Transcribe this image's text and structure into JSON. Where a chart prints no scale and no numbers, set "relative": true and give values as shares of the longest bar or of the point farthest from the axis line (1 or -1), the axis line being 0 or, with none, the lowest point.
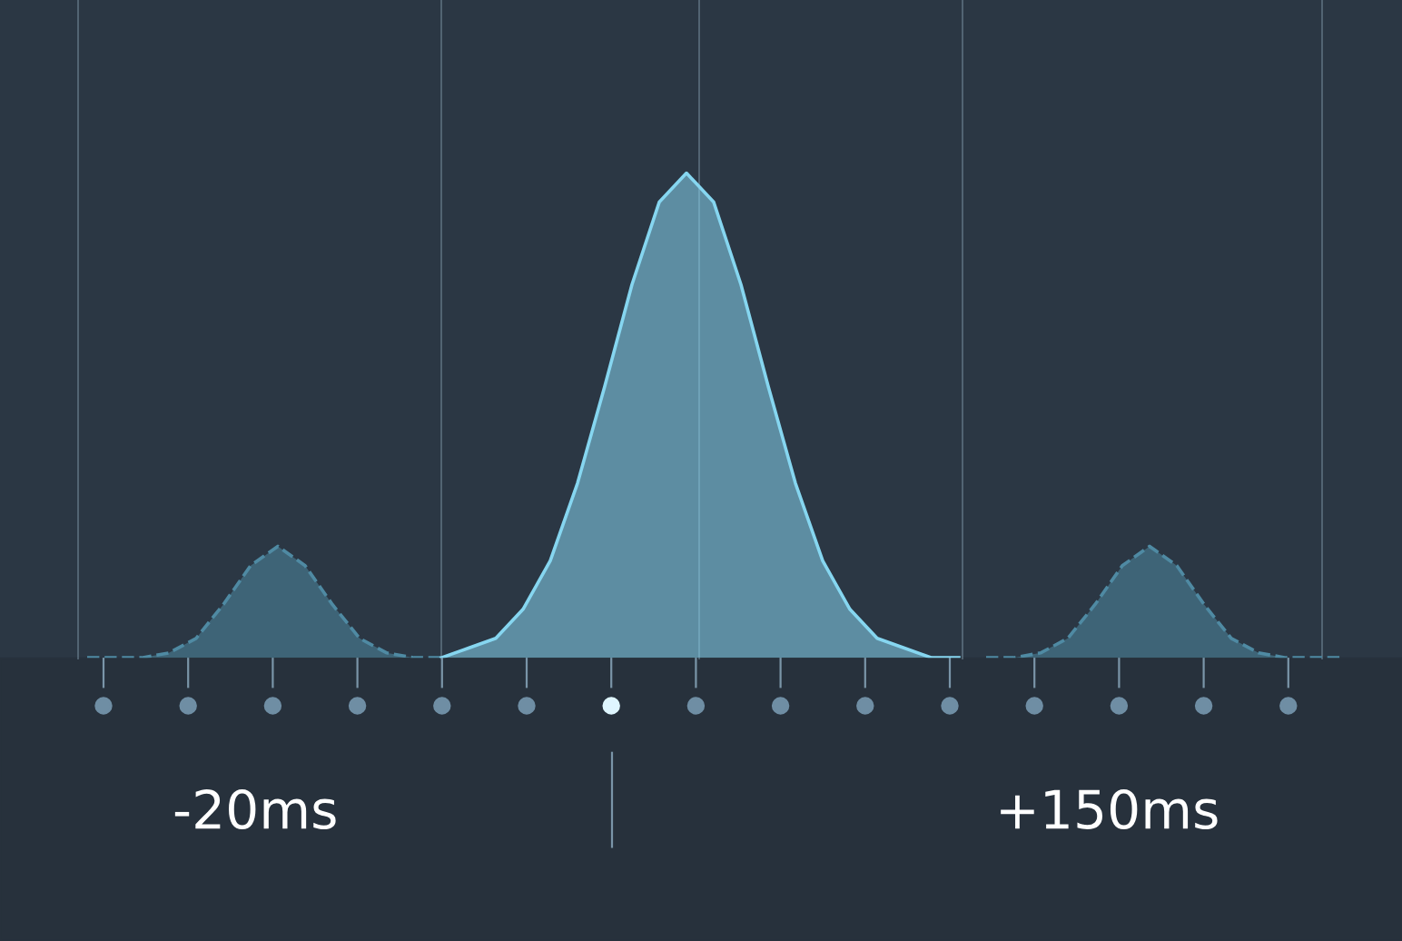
{
  "chart_data": {
    "type": "area",
    "relative": true,
    "categories": [
      null,
      null,
      null,
      null,
      null,
      null,
      null,
      null,
      null,
      null,
      null,
      null,
      null,
      null,
      null,
      null,
      null,
      null,
      null,
      null,
      null,
      null,
      null,
      null,
      null,
      null,
      null,
      null,
      null,
      null,
      null,
      null,
      null,
      null,
      null,
      null,
      null,
      null,
      null,
      null,
      null,
      null,
      null,
      null,
      null,
      null,
      null
    ],
    "series": [
      {
        "color": "#4f8aa3",
        "line_style": "dashed",
        "values": [
          0,
          0,
          0,
          0.01,
          0.04,
          0.11,
          0.19,
          0.23,
          0.19,
          0.11,
          0.04,
          0.01,
          0,
          0,
          null,
          null,
          null,
          null,
          null,
          null,
          null,
          null,
          null,
          null,
          null,
          null,
          null,
          null,
          null,
          null,
          null,
          null,
          null,
          null,
          null,
          null,
          null,
          null,
          null,
          null,
          null,
          null,
          null,
          null,
          null,
          null,
          null
        ]
      },
      {
        "color": "#86d6f0",
        "line_style": "solid",
        "values": [
          null,
          null,
          null,
          null,
          null,
          null,
          null,
          null,
          null,
          null,
          null,
          null,
          null,
          0,
          0.02,
          0.04,
          0.1,
          0.2,
          0.36,
          0.56,
          0.77,
          0.94,
          1,
          0.94,
          0.77,
          0.56,
          0.36,
          0.2,
          0.1,
          0.04,
          0.02,
          0,
          0,
          null,
          null,
          null,
          null,
          null,
          null,
          null,
          null,
          null,
          null,
          null,
          null,
          null,
          null
        ]
      },
      {
        "color": "#4f8aa3",
        "line_style": "dashed",
        "values": [
          null,
          null,
          null,
          null,
          null,
          null,
          null,
          null,
          null,
          null,
          null,
          null,
          null,
          null,
          null,
          null,
          null,
          null,
          null,
          null,
          null,
          null,
          null,
          null,
          null,
          null,
          null,
          null,
          null,
          null,
          null,
          null,
          null,
          0,
          0,
          0.01,
          0.04,
          0.11,
          0.19,
          0.23,
          0.19,
          0.11,
          0.04,
          0.01,
          0,
          0,
          0
        ]
      }
    ],
    "annotations": [
      "-20ms",
      "+150ms"
    ]
  }
}
